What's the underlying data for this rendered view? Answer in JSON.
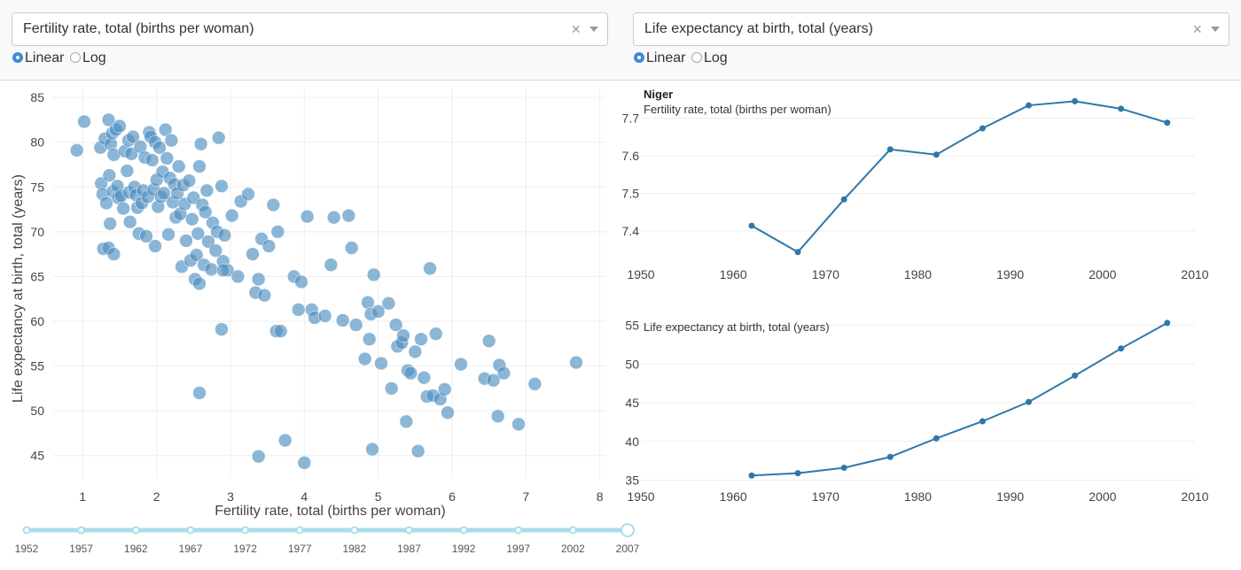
{
  "controls": {
    "left": {
      "dropdown_value": "Fertility rate, total (births per woman)",
      "clear_glyph": "×",
      "radio_options": [
        "Linear",
        "Log"
      ],
      "selected": "Linear"
    },
    "right": {
      "dropdown_value": "Life expectancy at birth, total (years)",
      "clear_glyph": "×",
      "radio_options": [
        "Linear",
        "Log"
      ],
      "selected": "Linear"
    }
  },
  "slider": {
    "marks": [
      "1952",
      "1957",
      "1962",
      "1967",
      "1972",
      "1977",
      "1982",
      "1987",
      "1992",
      "1997",
      "2002",
      "2007"
    ],
    "selected": "2007",
    "color": "#a8dde9"
  },
  "colors": {
    "scatter_point": "#4f8fc0",
    "line": "#2f78a8",
    "grid": "#eeeeee"
  },
  "chart_data": [
    {
      "type": "scatter",
      "title": "",
      "xlabel": "Fertility rate, total (births per woman)",
      "ylabel": "Life expectancy at birth, total (years)",
      "xlim": [
        0.6,
        8.1
      ],
      "ylim": [
        42.5,
        86
      ],
      "xticks": [
        1,
        2,
        3,
        4,
        5,
        6,
        7,
        8
      ],
      "yticks": [
        45,
        50,
        55,
        60,
        65,
        70,
        75,
        80,
        85
      ],
      "grid": true,
      "points": [
        [
          0.92,
          79.1
        ],
        [
          1.02,
          82.3
        ],
        [
          1.24,
          79.4
        ],
        [
          1.25,
          75.4
        ],
        [
          1.27,
          74.2
        ],
        [
          1.3,
          80.4
        ],
        [
          1.32,
          73.2
        ],
        [
          1.35,
          82.5
        ],
        [
          1.36,
          76.3
        ],
        [
          1.37,
          70.9
        ],
        [
          1.38,
          79.8
        ],
        [
          1.4,
          81.0
        ],
        [
          1.41,
          74.5
        ],
        [
          1.42,
          78.6
        ],
        [
          1.45,
          81.4
        ],
        [
          1.47,
          75.1
        ],
        [
          1.48,
          73.8
        ],
        [
          1.5,
          81.8
        ],
        [
          1.52,
          74.0
        ],
        [
          1.55,
          72.6
        ],
        [
          1.57,
          79.0
        ],
        [
          1.6,
          76.8
        ],
        [
          1.62,
          80.2
        ],
        [
          1.63,
          74.4
        ],
        [
          1.64,
          71.1
        ],
        [
          1.66,
          78.7
        ],
        [
          1.68,
          80.6
        ],
        [
          1.7,
          75.0
        ],
        [
          1.72,
          74.1
        ],
        [
          1.74,
          72.7
        ],
        [
          1.76,
          69.8
        ],
        [
          1.78,
          79.5
        ],
        [
          1.8,
          73.2
        ],
        [
          1.82,
          74.6
        ],
        [
          1.84,
          78.3
        ],
        [
          1.86,
          69.5
        ],
        [
          1.88,
          73.9
        ],
        [
          1.9,
          81.1
        ],
        [
          1.92,
          80.6
        ],
        [
          1.94,
          78.0
        ],
        [
          1.96,
          74.7
        ],
        [
          1.98,
          80.0
        ],
        [
          2.0,
          75.8
        ],
        [
          2.02,
          72.8
        ],
        [
          2.04,
          79.4
        ],
        [
          2.06,
          73.9
        ],
        [
          2.08,
          76.7
        ],
        [
          2.1,
          74.3
        ],
        [
          2.12,
          81.4
        ],
        [
          2.14,
          78.2
        ],
        [
          2.16,
          69.7
        ],
        [
          2.18,
          76.0
        ],
        [
          2.2,
          80.2
        ],
        [
          2.22,
          73.3
        ],
        [
          2.24,
          75.3
        ],
        [
          2.26,
          71.6
        ],
        [
          2.28,
          74.3
        ],
        [
          2.3,
          77.3
        ],
        [
          2.32,
          72.0
        ],
        [
          2.34,
          66.1
        ],
        [
          2.36,
          75.2
        ],
        [
          2.38,
          73.1
        ],
        [
          2.4,
          69.0
        ],
        [
          2.44,
          75.7
        ],
        [
          2.46,
          66.8
        ],
        [
          2.48,
          71.4
        ],
        [
          2.5,
          73.8
        ],
        [
          2.52,
          64.7
        ],
        [
          2.54,
          67.4
        ],
        [
          2.56,
          69.8
        ],
        [
          2.58,
          77.3
        ],
        [
          2.6,
          79.8
        ],
        [
          2.62,
          73.0
        ],
        [
          2.64,
          66.3
        ],
        [
          2.66,
          72.2
        ],
        [
          2.68,
          74.6
        ],
        [
          2.7,
          68.9
        ],
        [
          2.74,
          65.8
        ],
        [
          2.76,
          71.0
        ],
        [
          2.8,
          67.9
        ],
        [
          2.82,
          70.0
        ],
        [
          2.84,
          80.5
        ],
        [
          2.88,
          75.1
        ],
        [
          2.9,
          66.7
        ],
        [
          2.92,
          69.6
        ],
        [
          2.96,
          65.7
        ],
        [
          3.02,
          71.8
        ],
        [
          3.1,
          65.0
        ],
        [
          3.14,
          73.4
        ],
        [
          3.24,
          74.2
        ],
        [
          3.3,
          67.5
        ],
        [
          3.34,
          63.2
        ],
        [
          3.38,
          64.7
        ],
        [
          3.42,
          69.2
        ],
        [
          3.46,
          62.9
        ],
        [
          3.52,
          68.4
        ],
        [
          3.58,
          73.0
        ],
        [
          3.62,
          58.9
        ],
        [
          3.64,
          70.0
        ],
        [
          3.68,
          58.9
        ],
        [
          3.74,
          46.7
        ],
        [
          3.86,
          65.0
        ],
        [
          3.92,
          61.3
        ],
        [
          3.96,
          64.4
        ],
        [
          4.0,
          44.2
        ],
        [
          4.04,
          71.7
        ],
        [
          4.1,
          61.3
        ],
        [
          4.14,
          60.4
        ],
        [
          4.28,
          60.6
        ],
        [
          4.36,
          66.3
        ],
        [
          4.4,
          71.6
        ],
        [
          4.52,
          60.1
        ],
        [
          4.6,
          71.8
        ],
        [
          4.64,
          68.2
        ],
        [
          4.7,
          59.6
        ],
        [
          4.82,
          55.8
        ],
        [
          4.86,
          62.1
        ],
        [
          4.88,
          58.0
        ],
        [
          4.9,
          60.8
        ],
        [
          4.92,
          45.7
        ],
        [
          4.94,
          65.2
        ],
        [
          5.0,
          61.1
        ],
        [
          5.04,
          55.3
        ],
        [
          5.14,
          62.0
        ],
        [
          5.18,
          52.5
        ],
        [
          5.24,
          59.6
        ],
        [
          5.26,
          57.2
        ],
        [
          5.32,
          57.6
        ],
        [
          5.34,
          58.4
        ],
        [
          5.38,
          48.8
        ],
        [
          5.4,
          54.5
        ],
        [
          5.44,
          54.2
        ],
        [
          5.5,
          56.6
        ],
        [
          5.54,
          45.5
        ],
        [
          5.58,
          58.0
        ],
        [
          5.62,
          53.7
        ],
        [
          5.66,
          51.6
        ],
        [
          5.7,
          65.9
        ],
        [
          5.74,
          51.7
        ],
        [
          5.78,
          58.6
        ],
        [
          5.84,
          51.3
        ],
        [
          5.9,
          52.4
        ],
        [
          5.94,
          49.8
        ],
        [
          6.12,
          55.2
        ],
        [
          6.44,
          53.6
        ],
        [
          6.5,
          57.8
        ],
        [
          6.56,
          53.4
        ],
        [
          6.62,
          49.4
        ],
        [
          6.64,
          55.1
        ],
        [
          6.7,
          54.2
        ],
        [
          6.9,
          48.5
        ],
        [
          7.12,
          53.0
        ],
        [
          7.68,
          55.4
        ],
        [
          2.58,
          52.0
        ],
        [
          2.88,
          59.1
        ],
        [
          3.38,
          44.9
        ],
        [
          1.28,
          68.1
        ],
        [
          1.35,
          68.2
        ],
        [
          1.42,
          67.5
        ],
        [
          1.98,
          68.4
        ],
        [
          2.58,
          64.2
        ],
        [
          2.9,
          65.7
        ]
      ]
    },
    {
      "type": "line",
      "title": "Niger",
      "subtitle": "Fertility rate, total (births per woman)",
      "xlim": [
        1950,
        2010
      ],
      "ylim": [
        7.32,
        7.76
      ],
      "xticks": [
        1950,
        1960,
        1970,
        1980,
        1990,
        2000,
        2010
      ],
      "yticks": [
        7.4,
        7.5,
        7.6,
        7.7
      ],
      "x": [
        1962,
        1967,
        1972,
        1977,
        1982,
        1987,
        1992,
        1997,
        2002,
        2007
      ],
      "y": [
        7.414,
        7.344,
        7.484,
        7.617,
        7.603,
        7.673,
        7.734,
        7.745,
        7.725,
        7.688
      ]
    },
    {
      "type": "line",
      "title": "",
      "subtitle": "Life expectancy at birth, total (years)",
      "xlim": [
        1950,
        2010
      ],
      "ylim": [
        34.6,
        57
      ],
      "xticks": [
        1950,
        1960,
        1970,
        1980,
        1990,
        2000,
        2010
      ],
      "yticks": [
        35,
        40,
        45,
        50,
        55
      ],
      "x": [
        1962,
        1967,
        1972,
        1977,
        1982,
        1987,
        1992,
        1997,
        2002,
        2007
      ],
      "y": [
        35.6,
        35.9,
        36.6,
        38.0,
        40.4,
        42.6,
        45.1,
        48.5,
        52.0,
        55.3
      ]
    }
  ]
}
